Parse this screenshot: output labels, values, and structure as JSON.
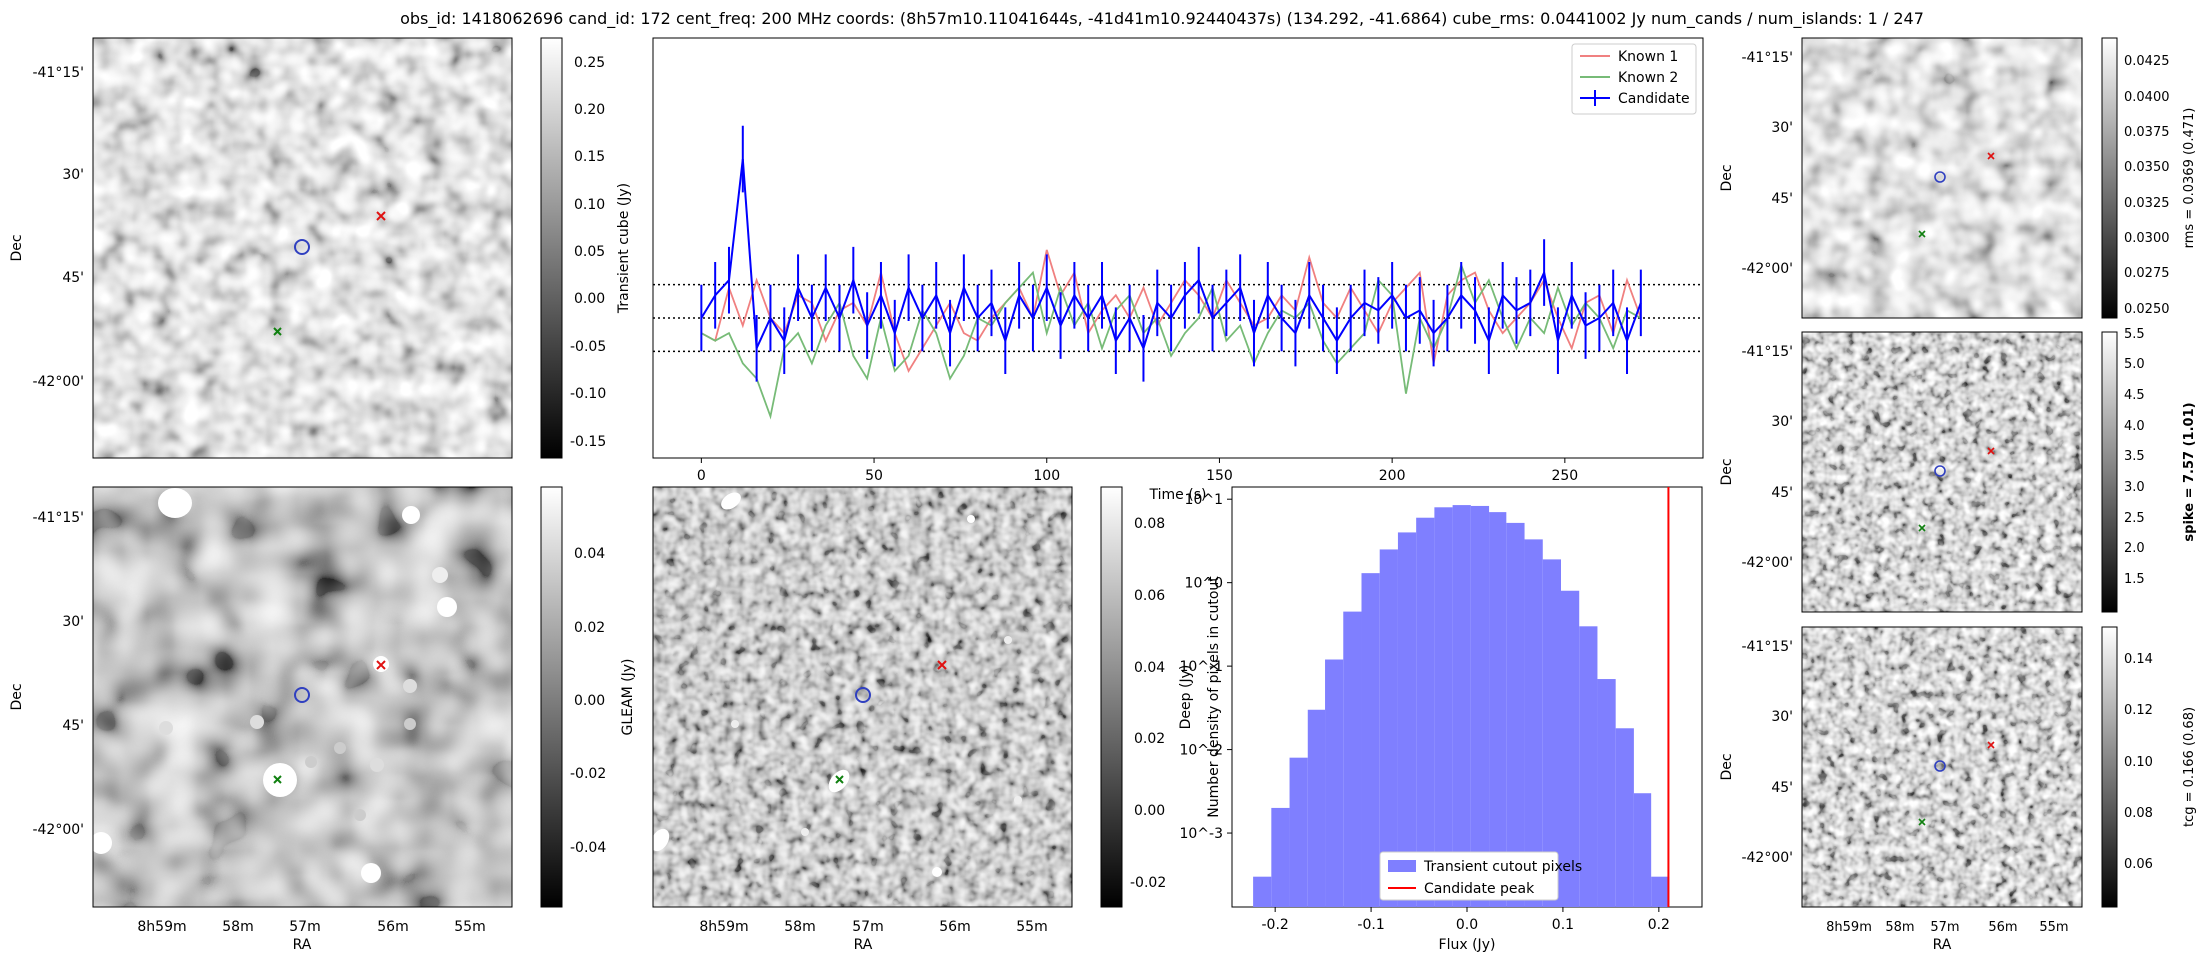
{
  "title": "obs_id: 1418062696 cand_id: 172 cent_freq: 200 MHz coords: (8h57m10.11041644s, -41d41m10.92440437s) (134.292, -41.6864) cube_rms: 0.0441002 Jy num_cands / num_islands: 1 / 247",
  "colors": {
    "known1": "#f08080",
    "known2": "#77bb77",
    "candidate": "#0000ff",
    "red_marker": "#e01010",
    "green_marker": "#108010",
    "blue_marker": "#3040c0",
    "hist_fill": "#7f7fff",
    "peak_line": "#ff0000"
  },
  "labels": {
    "ra": "RA",
    "dec": "Dec",
    "ra_ticks": [
      "8h59m",
      "58m",
      "57m",
      "56m",
      "55m"
    ],
    "dec_ticks": [
      "-41°15'",
      "30'",
      "45'",
      "-42°00'"
    ]
  },
  "panels": {
    "transient_image": {
      "colorbar_label": "",
      "colorbar_ticks": [
        "0.25",
        "0.20",
        "0.15",
        "0.10",
        "0.05",
        "0.00",
        "-0.05",
        "-0.10",
        "-0.15"
      ]
    },
    "gleam_image": {
      "colorbar_label": "GLEAM (Jy)",
      "colorbar_ticks": [
        "0.04",
        "0.02",
        "0.00",
        "-0.02",
        "-0.04"
      ]
    },
    "deep_image": {
      "colorbar_label": "Deep (Jy)",
      "colorbar_ticks": [
        "0.08",
        "0.06",
        "0.04",
        "0.02",
        "0.00",
        "-0.02"
      ]
    },
    "rms_image": {
      "colorbar_label": "rms = 0.0369 (0.471)",
      "colorbar_ticks": [
        "0.0425",
        "0.0400",
        "0.0375",
        "0.0350",
        "0.0325",
        "0.0300",
        "0.0275",
        "0.0250"
      ]
    },
    "spike_image": {
      "colorbar_label": "spike = 7.57 (1.01)",
      "colorbar_ticks": [
        "5.5",
        "5.0",
        "4.5",
        "4.0",
        "3.5",
        "3.0",
        "2.5",
        "2.0",
        "1.5"
      ]
    },
    "tcg_image": {
      "colorbar_label": "tcg = 0.166 (0.68)",
      "colorbar_ticks": [
        "0.14",
        "0.12",
        "0.10",
        "0.08",
        "0.06"
      ]
    }
  },
  "chart_data": [
    {
      "type": "line",
      "title": "",
      "xlabel": "Time (s)",
      "ylabel": "Transient cube (Jy)",
      "xlim": [
        -14,
        290
      ],
      "ylim": [
        -0.185,
        0.37
      ],
      "x_ticks": [
        0,
        50,
        100,
        150,
        200,
        250
      ],
      "hlines": [
        -0.0441,
        0.0,
        0.0441
      ],
      "legend": [
        "Known 1",
        "Known 2",
        "Candidate"
      ],
      "legend_position": "top-right",
      "x": [
        0,
        4,
        8,
        12,
        16,
        20,
        24,
        28,
        32,
        36,
        40,
        44,
        48,
        52,
        56,
        60,
        64,
        68,
        72,
        76,
        80,
        84,
        88,
        92,
        96,
        100,
        104,
        108,
        112,
        116,
        120,
        124,
        128,
        132,
        136,
        140,
        144,
        148,
        152,
        156,
        160,
        164,
        168,
        172,
        176,
        180,
        184,
        188,
        192,
        196,
        200,
        204,
        208,
        212,
        216,
        220,
        224,
        228,
        232,
        236,
        240,
        244,
        248,
        252,
        256,
        260,
        264,
        268,
        272
      ],
      "series": [
        {
          "name": "Known 1",
          "values": [
            -0.02,
            -0.03,
            0.04,
            -0.01,
            0.05,
            0.0,
            -0.02,
            0.03,
            0.02,
            -0.03,
            0.01,
            0.02,
            -0.01,
            0.06,
            -0.02,
            -0.07,
            -0.04,
            -0.01,
            0.02,
            -0.02,
            -0.03,
            0.0,
            0.02,
            0.04,
            0.0,
            0.09,
            0.03,
            0.06,
            -0.02,
            0.01,
            0.03,
            0.0,
            0.04,
            -0.01,
            0.02,
            0.05,
            0.03,
            0.0,
            0.05,
            0.02,
            -0.01,
            0.0,
            0.03,
            0.01,
            0.08,
            0.02,
            0.0,
            0.04,
            0.01,
            -0.02,
            0.02,
            0.04,
            0.06,
            -0.06,
            0.03,
            0.05,
            0.06,
            0.01,
            -0.02,
            0.0,
            0.02,
            0.05,
            0.0,
            -0.04,
            0.02,
            0.03,
            -0.02,
            0.05,
            0.0
          ]
        },
        {
          "name": "Known 2",
          "values": [
            -0.02,
            -0.03,
            -0.02,
            -0.06,
            -0.08,
            -0.13,
            -0.04,
            -0.02,
            -0.06,
            -0.01,
            0.02,
            -0.05,
            -0.08,
            0.0,
            -0.07,
            -0.05,
            0.01,
            -0.02,
            -0.08,
            -0.05,
            0.0,
            -0.01,
            0.02,
            0.04,
            0.06,
            -0.02,
            0.04,
            -0.01,
            0.02,
            -0.04,
            0.01,
            0.03,
            -0.02,
            0.0,
            -0.05,
            -0.02,
            0.0,
            0.04,
            -0.03,
            -0.01,
            -0.06,
            -0.02,
            0.01,
            0.0,
            0.02,
            -0.03,
            -0.06,
            -0.04,
            -0.02,
            0.05,
            0.03,
            -0.1,
            0.0,
            -0.04,
            0.0,
            0.07,
            0.02,
            0.05,
            0.0,
            -0.04,
            0.0,
            -0.02,
            0.04,
            -0.01,
            0.02,
            0.0,
            -0.04,
            0.01,
            0.0
          ]
        },
        {
          "name": "Candidate",
          "values": [
            0.0,
            0.03,
            0.05,
            0.21,
            -0.04,
            0.0,
            -0.03,
            0.04,
            0.0,
            0.04,
            0.0,
            0.05,
            -0.01,
            0.03,
            -0.02,
            0.04,
            0.0,
            0.03,
            -0.02,
            0.04,
            0.0,
            0.02,
            -0.03,
            0.03,
            0.0,
            0.04,
            -0.01,
            0.03,
            0.0,
            0.03,
            -0.03,
            0.0,
            -0.04,
            0.02,
            0.0,
            0.03,
            0.05,
            0.0,
            0.02,
            0.04,
            -0.02,
            0.03,
            0.0,
            -0.02,
            0.03,
            0.0,
            -0.03,
            0.0,
            0.02,
            0.01,
            0.03,
            0.0,
            0.01,
            -0.02,
            0.0,
            0.03,
            0.01,
            -0.03,
            0.03,
            0.01,
            0.02,
            0.06,
            -0.03,
            0.03,
            -0.01,
            0.0,
            0.02,
            -0.03,
            0.02
          ],
          "error": 0.044
        }
      ]
    },
    {
      "type": "bar",
      "title": "",
      "xlabel": "Flux (Jy)",
      "ylabel": "Number density of pixels in cutout",
      "x_scale": "linear",
      "y_scale": "log",
      "xlim": [
        -0.245,
        0.245
      ],
      "ylim": [
        0.00013,
        14
      ],
      "x_ticks": [
        -0.2,
        -0.1,
        0.0,
        0.1,
        0.2
      ],
      "y_ticks": [
        "10^1",
        "10^0",
        "10^-1",
        "10^-2",
        "10^-3"
      ],
      "bin_edges": [
        -0.223,
        -0.204,
        -0.185,
        -0.166,
        -0.148,
        -0.129,
        -0.11,
        -0.091,
        -0.072,
        -0.053,
        -0.034,
        -0.015,
        0.004,
        0.023,
        0.041,
        0.06,
        0.079,
        0.098,
        0.117,
        0.136,
        0.155,
        0.174,
        0.192,
        0.211
      ],
      "values": [
        0.0003,
        0.002,
        0.008,
        0.03,
        0.12,
        0.45,
        1.3,
        2.5,
        4.0,
        6.0,
        8.0,
        8.5,
        8.3,
        7.0,
        5.2,
        3.3,
        1.9,
        0.8,
        0.3,
        0.07,
        0.018,
        0.003,
        0.0003
      ],
      "vline": 0.21,
      "legend": [
        "Transient cutout pixels",
        "Candidate peak"
      ],
      "legend_position": "bottom-center"
    }
  ]
}
